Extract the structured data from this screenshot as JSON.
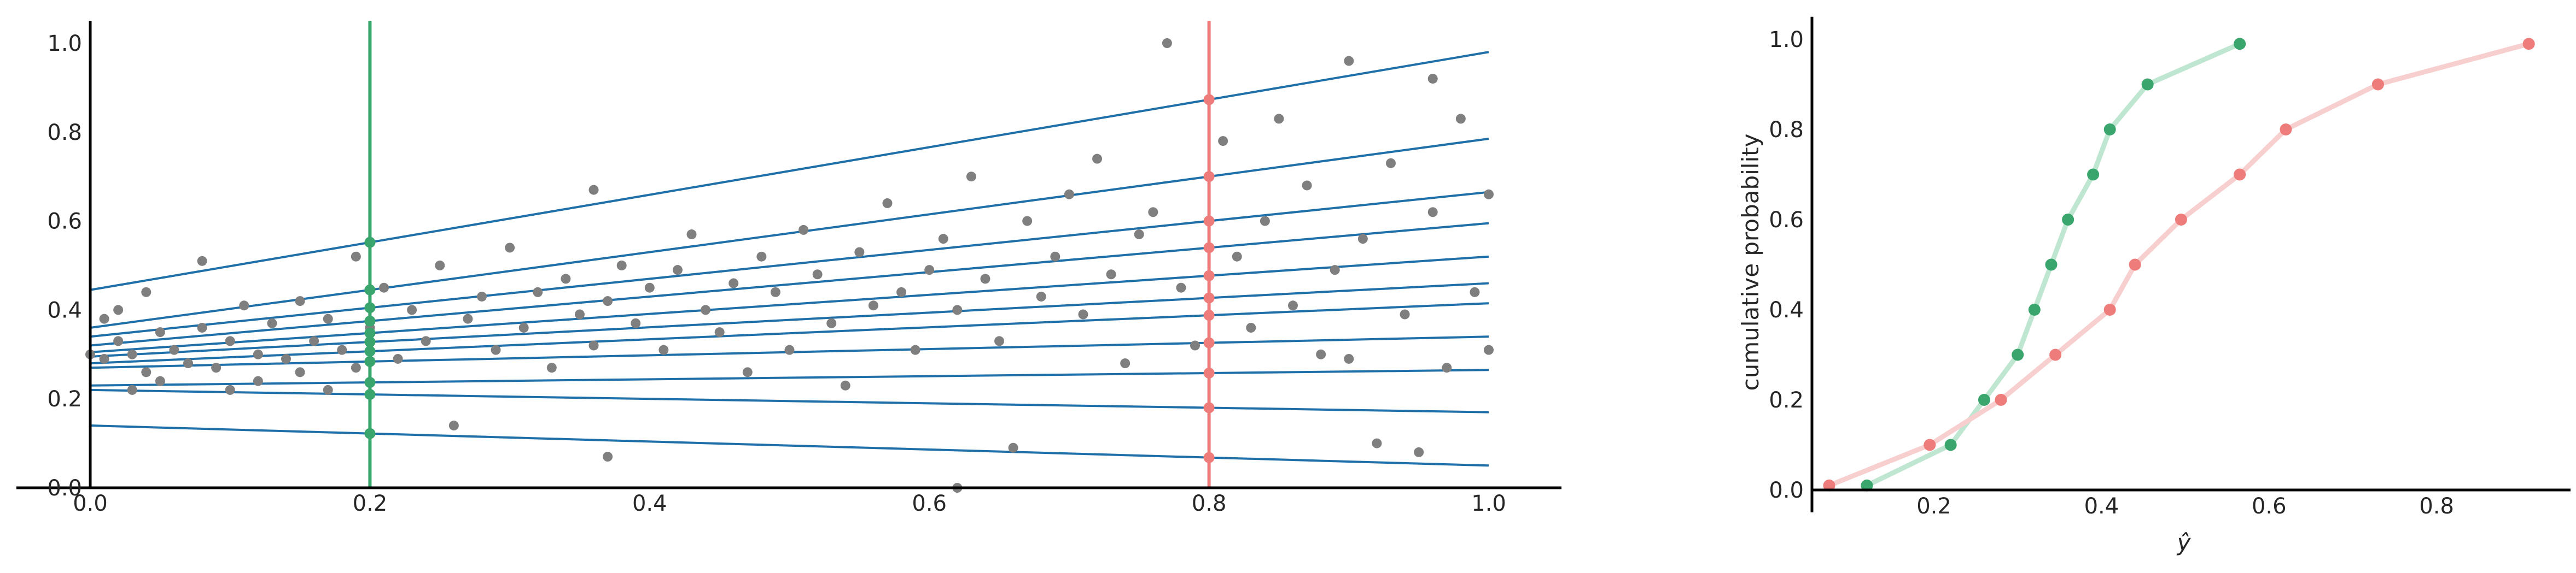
{
  "chart_data": [
    {
      "type": "scatter",
      "xlim": [
        0,
        1.05
      ],
      "ylim": [
        0,
        1.05
      ],
      "xticks": [
        "0.0",
        "0.2",
        "0.4",
        "0.6",
        "0.8",
        "1.0"
      ],
      "yticks": [
        "0.0",
        "0.2",
        "0.4",
        "0.6",
        "0.8",
        "1.0"
      ],
      "xlabel": "",
      "ylabel": "",
      "grid": false,
      "colors": {
        "points": "#7f7f7f",
        "lines": "#1f6fa8",
        "green": "#3aa66d",
        "red": "#ee7c7a"
      },
      "vertical_lines": [
        {
          "x": 0.2,
          "color": "#3aa66d"
        },
        {
          "x": 0.8,
          "color": "#ee7c7a"
        }
      ],
      "quantile_lines": [
        {
          "y0": 0.14,
          "y1": 0.05
        },
        {
          "y0": 0.22,
          "y1": 0.17
        },
        {
          "y0": 0.23,
          "y1": 0.265
        },
        {
          "y0": 0.27,
          "y1": 0.34
        },
        {
          "y0": 0.28,
          "y1": 0.415
        },
        {
          "y0": 0.295,
          "y1": 0.46
        },
        {
          "y0": 0.305,
          "y1": 0.52
        },
        {
          "y0": 0.32,
          "y1": 0.595
        },
        {
          "y0": 0.34,
          "y1": 0.665
        },
        {
          "y0": 0.36,
          "y1": 0.785
        },
        {
          "y0": 0.445,
          "y1": 0.98
        }
      ],
      "points": [
        [
          0.0,
          0.3
        ],
        [
          0.01,
          0.38
        ],
        [
          0.01,
          0.29
        ],
        [
          0.02,
          0.4
        ],
        [
          0.02,
          0.33
        ],
        [
          0.03,
          0.3
        ],
        [
          0.03,
          0.22
        ],
        [
          0.04,
          0.26
        ],
        [
          0.04,
          0.44
        ],
        [
          0.05,
          0.35
        ],
        [
          0.05,
          0.24
        ],
        [
          0.06,
          0.31
        ],
        [
          0.07,
          0.28
        ],
        [
          0.08,
          0.51
        ],
        [
          0.08,
          0.36
        ],
        [
          0.09,
          0.27
        ],
        [
          0.1,
          0.33
        ],
        [
          0.1,
          0.22
        ],
        [
          0.11,
          0.41
        ],
        [
          0.12,
          0.3
        ],
        [
          0.12,
          0.24
        ],
        [
          0.13,
          0.37
        ],
        [
          0.14,
          0.29
        ],
        [
          0.15,
          0.42
        ],
        [
          0.15,
          0.26
        ],
        [
          0.16,
          0.33
        ],
        [
          0.17,
          0.22
        ],
        [
          0.17,
          0.38
        ],
        [
          0.18,
          0.31
        ],
        [
          0.19,
          0.52
        ],
        [
          0.19,
          0.27
        ],
        [
          0.2,
          0.36
        ],
        [
          0.21,
          0.45
        ],
        [
          0.22,
          0.29
        ],
        [
          0.23,
          0.4
        ],
        [
          0.24,
          0.33
        ],
        [
          0.25,
          0.5
        ],
        [
          0.26,
          0.14
        ],
        [
          0.27,
          0.38
        ],
        [
          0.28,
          0.43
        ],
        [
          0.29,
          0.31
        ],
        [
          0.3,
          0.54
        ],
        [
          0.31,
          0.36
        ],
        [
          0.32,
          0.44
        ],
        [
          0.33,
          0.27
        ],
        [
          0.34,
          0.47
        ],
        [
          0.35,
          0.39
        ],
        [
          0.36,
          0.67
        ],
        [
          0.36,
          0.32
        ],
        [
          0.37,
          0.42
        ],
        [
          0.37,
          0.07
        ],
        [
          0.38,
          0.5
        ],
        [
          0.39,
          0.37
        ],
        [
          0.4,
          0.45
        ],
        [
          0.41,
          0.31
        ],
        [
          0.42,
          0.49
        ],
        [
          0.43,
          0.57
        ],
        [
          0.44,
          0.4
        ],
        [
          0.45,
          0.35
        ],
        [
          0.46,
          0.46
        ],
        [
          0.47,
          0.26
        ],
        [
          0.48,
          0.52
        ],
        [
          0.49,
          0.44
        ],
        [
          0.5,
          0.31
        ],
        [
          0.51,
          0.58
        ],
        [
          0.52,
          0.48
        ],
        [
          0.53,
          0.37
        ],
        [
          0.54,
          0.23
        ],
        [
          0.55,
          0.53
        ],
        [
          0.56,
          0.41
        ],
        [
          0.57,
          0.64
        ],
        [
          0.58,
          0.44
        ],
        [
          0.59,
          0.31
        ],
        [
          0.6,
          0.49
        ],
        [
          0.61,
          0.56
        ],
        [
          0.62,
          0.0
        ],
        [
          0.62,
          0.4
        ],
        [
          0.63,
          0.7
        ],
        [
          0.64,
          0.47
        ],
        [
          0.65,
          0.33
        ],
        [
          0.66,
          0.09
        ],
        [
          0.67,
          0.6
        ],
        [
          0.68,
          0.43
        ],
        [
          0.69,
          0.52
        ],
        [
          0.7,
          0.66
        ],
        [
          0.71,
          0.39
        ],
        [
          0.72,
          0.74
        ],
        [
          0.73,
          0.48
        ],
        [
          0.74,
          0.28
        ],
        [
          0.75,
          0.57
        ],
        [
          0.76,
          0.62
        ],
        [
          0.77,
          1.0
        ],
        [
          0.78,
          0.45
        ],
        [
          0.79,
          0.32
        ],
        [
          0.81,
          0.78
        ],
        [
          0.82,
          0.52
        ],
        [
          0.83,
          0.36
        ],
        [
          0.84,
          0.6
        ],
        [
          0.85,
          0.83
        ],
        [
          0.86,
          0.41
        ],
        [
          0.87,
          0.68
        ],
        [
          0.88,
          0.3
        ],
        [
          0.89,
          0.49
        ],
        [
          0.9,
          0.96
        ],
        [
          0.9,
          0.29
        ],
        [
          0.91,
          0.56
        ],
        [
          0.92,
          0.1
        ],
        [
          0.93,
          0.73
        ],
        [
          0.94,
          0.39
        ],
        [
          0.95,
          0.08
        ],
        [
          0.96,
          0.62
        ],
        [
          0.96,
          0.92
        ],
        [
          0.97,
          0.27
        ],
        [
          0.98,
          0.83
        ],
        [
          0.99,
          0.44
        ],
        [
          1.0,
          0.31
        ],
        [
          1.0,
          0.66
        ]
      ]
    },
    {
      "type": "line",
      "xlim": [
        0.05,
        0.93
      ],
      "ylim": [
        0,
        1.05
      ],
      "xticks": [
        "0.2",
        "0.4",
        "0.6",
        "0.8"
      ],
      "yticks": [
        "0.0",
        "0.2",
        "0.4",
        "0.6",
        "0.8",
        "1.0"
      ],
      "xlabel": "ŷ",
      "ylabel": "cumulative probability",
      "grid": false,
      "series": [
        {
          "color": "#3aa66d",
          "line_color": "#bfe6d0",
          "x": [
            0.12,
            0.22,
            0.26,
            0.3,
            0.32,
            0.34,
            0.36,
            0.39,
            0.41,
            0.455,
            0.565
          ],
          "y": [
            0.01,
            0.1,
            0.2,
            0.3,
            0.4,
            0.5,
            0.6,
            0.7,
            0.8,
            0.9,
            0.99
          ]
        },
        {
          "color": "#ee7c7a",
          "line_color": "#f8cfcf",
          "x": [
            0.075,
            0.195,
            0.28,
            0.345,
            0.41,
            0.44,
            0.495,
            0.565,
            0.62,
            0.73,
            0.91
          ],
          "y": [
            0.01,
            0.1,
            0.2,
            0.3,
            0.4,
            0.5,
            0.6,
            0.7,
            0.8,
            0.9,
            0.99
          ]
        }
      ]
    }
  ]
}
